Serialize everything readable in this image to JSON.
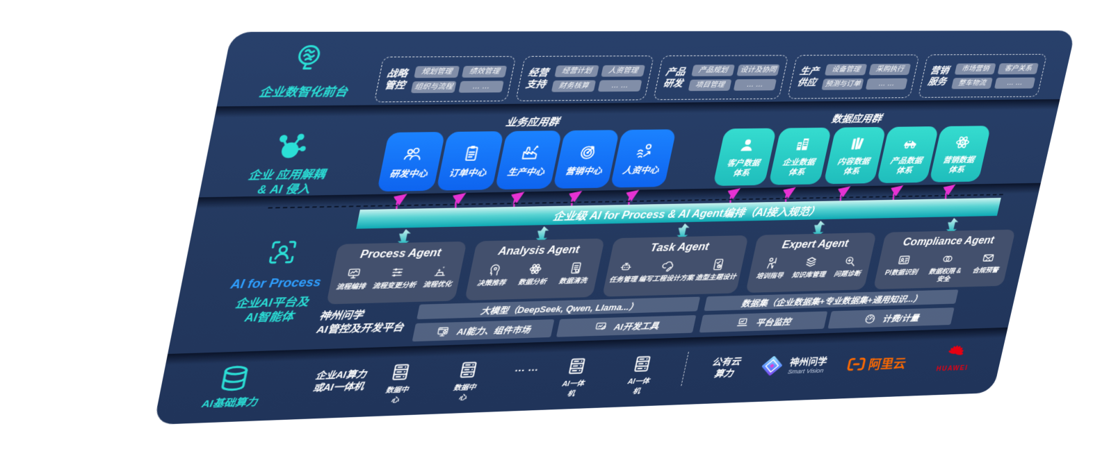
{
  "front_office": {
    "label": "企业数智化前台",
    "groups": [
      {
        "title": "战略管控",
        "items": [
          "规划管理",
          "绩效管理",
          "组织与流程",
          "… …"
        ]
      },
      {
        "title": "经营支持",
        "items": [
          "经营计划",
          "人资管理",
          "财务核算",
          "… …"
        ]
      },
      {
        "title": "产品研发",
        "items": [
          "产品规划",
          "设计及协同",
          "项目管理",
          "… …"
        ]
      },
      {
        "title": "生产供应",
        "items": [
          "设备管理",
          "采购执行",
          "预测与订单",
          "… …"
        ]
      },
      {
        "title": "营销服务",
        "items": [
          "市场营销",
          "客户关系",
          "整车物流",
          "… …"
        ]
      }
    ]
  },
  "decouple": {
    "label": "企业 应用解耦\n& AI 侵入",
    "business_group_title": "业务应用群",
    "business_apps": [
      {
        "label": "研发中心",
        "icon": "team-icon"
      },
      {
        "label": "订单中心",
        "icon": "clipboard-icon"
      },
      {
        "label": "生产中心",
        "icon": "factory-icon"
      },
      {
        "label": "营销中心",
        "icon": "target-icon"
      },
      {
        "label": "人资中心",
        "icon": "person-wave-icon"
      }
    ],
    "data_group_title": "数据应用群",
    "data_systems": [
      {
        "label": "客户数据\n体系",
        "icon": "user-icon"
      },
      {
        "label": "企业数据\n体系",
        "icon": "building-icon"
      },
      {
        "label": "内容数据\n体系",
        "icon": "books-icon"
      },
      {
        "label": "产品数据\n体系",
        "icon": "car-icon"
      },
      {
        "label": "营销数据\n体系",
        "icon": "atom-icon"
      }
    ]
  },
  "ai_bus": {
    "label": "企业级 AI for Process & AI Agent编排（AI接入规范）"
  },
  "agent_zone": {
    "label_en": "AI for Process",
    "label_zh": "企业AI平台及\nAI智能体",
    "agents": [
      {
        "title": "Process Agent",
        "items": [
          {
            "label": "流程编排",
            "icon": "monitor-chart-icon"
          },
          {
            "label": "流程变更分析",
            "icon": "sliders-icon"
          },
          {
            "label": "流程优化",
            "icon": "sparkle-box-icon"
          }
        ]
      },
      {
        "title": "Analysis Agent",
        "items": [
          {
            "label": "决策推荐",
            "icon": "head-gear-icon"
          },
          {
            "label": "数据分析",
            "icon": "atom-icon"
          },
          {
            "label": "数据清洗",
            "icon": "document-icon"
          }
        ]
      },
      {
        "title": "Task Agent",
        "items": [
          {
            "label": "任务管理",
            "icon": "robot-icon"
          },
          {
            "label": "编写工程设计方案",
            "icon": "cloud-pen-icon"
          },
          {
            "label": "造型主题设计",
            "icon": "tablet-check-icon"
          }
        ]
      },
      {
        "title": "Expert Agent",
        "items": [
          {
            "label": "培训指导",
            "icon": "teacher-icon"
          },
          {
            "label": "知识库管理",
            "icon": "layers-icon"
          },
          {
            "label": "问题诊断",
            "icon": "diagnose-icon"
          }
        ]
      },
      {
        "title": "Compliance Agent",
        "items": [
          {
            "label": "PI数据识别",
            "icon": "id-card-icon"
          },
          {
            "label": "数据权限 &\n安全",
            "icon": "link-circles-icon"
          },
          {
            "label": "合规预警",
            "icon": "mail-alert-icon"
          }
        ]
      }
    ]
  },
  "platform": {
    "label": "神州问学\nAI管控及开发平台",
    "model_bar": "大模型（DeepSeek, Qwen, Llama...）",
    "capability_bar": "AI能力、组件市场",
    "devtools_bar": "AI开发工具",
    "dataset_bar": "数据集（企业数据集+专业数据集+通用知识...）",
    "monitor_bar": "平台监控",
    "billing_bar": "计费/计量"
  },
  "infra": {
    "label": "AI基础算力",
    "enterprise": "企业AI算力\n或AI一体机",
    "nodes": [
      {
        "label": "数据中心",
        "icon": "server-icon"
      },
      {
        "label": "数据中心",
        "icon": "server-icon"
      },
      {
        "label": "AI一体机",
        "icon": "server-icon"
      },
      {
        "label": "AI一体机",
        "icon": "server-icon"
      }
    ],
    "dots": "… …",
    "public_cloud": "公有云\n算力",
    "vendors": [
      {
        "name": "神州问学",
        "sub": "Smart Vision"
      },
      {
        "name": "阿里云"
      },
      {
        "name": "HUAWEI"
      }
    ]
  },
  "colors": {
    "panel_navy": "#24395F",
    "accent_teal": "#2BDFD6",
    "app_blue": "#1273F3",
    "data_teal": "#2BD5CB",
    "bus_teal": "#0EA9B4",
    "arrow_magenta": "#E632D2",
    "alibaba_orange": "#FF6A00",
    "huawei_red": "#E60012",
    "process_blue": "#2F9FFF"
  }
}
